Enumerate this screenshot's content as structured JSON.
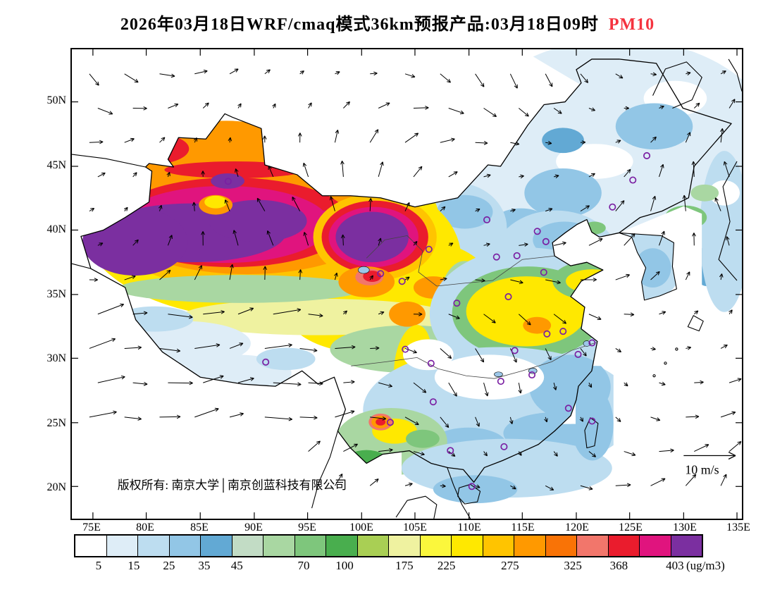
{
  "title": {
    "main": "2026年03月18日WRF/cmaq模式36km预报产品:03月18日09时",
    "pollutant": "PM10",
    "pollutant_color": "#f5333f"
  },
  "map": {
    "lat_labels": [
      "50N",
      "45N",
      "40N",
      "35N",
      "30N",
      "25N",
      "20N"
    ],
    "lon_labels": [
      "75E",
      "80E",
      "85E",
      "90E",
      "95E",
      "100E",
      "105E",
      "110E",
      "115E",
      "120E",
      "125E",
      "130E",
      "135E"
    ],
    "copyright": "版权所有: 南京大学│南京创蓝科技有限公司",
    "wind_scale_label": "10 m/s",
    "city_marker_color": "#7a1fa2",
    "city_markers": [
      [
        87.6,
        43.8
      ],
      [
        91.1,
        29.7
      ],
      [
        101.8,
        36.6
      ],
      [
        103.8,
        36.0
      ],
      [
        106.3,
        38.5
      ],
      [
        111.7,
        40.8
      ],
      [
        108.9,
        34.3
      ],
      [
        104.1,
        30.7
      ],
      [
        106.5,
        29.6
      ],
      [
        102.7,
        25.0
      ],
      [
        106.7,
        26.6
      ],
      [
        108.3,
        22.8
      ],
      [
        110.3,
        20.0
      ],
      [
        113.3,
        23.1
      ],
      [
        113.0,
        28.2
      ],
      [
        114.3,
        30.6
      ],
      [
        113.7,
        34.8
      ],
      [
        112.6,
        37.9
      ],
      [
        114.5,
        38.0
      ],
      [
        116.4,
        39.9
      ],
      [
        117.2,
        39.1
      ],
      [
        123.4,
        41.8
      ],
      [
        125.3,
        43.9
      ],
      [
        126.6,
        45.8
      ],
      [
        117.0,
        36.7
      ],
      [
        117.3,
        31.9
      ],
      [
        118.8,
        32.1
      ],
      [
        121.5,
        31.2
      ],
      [
        120.2,
        30.3
      ],
      [
        115.9,
        28.7
      ],
      [
        119.3,
        26.1
      ],
      [
        121.5,
        25.1
      ]
    ]
  },
  "colorbar": {
    "unit_label": "(ug/m3)",
    "tick_values": [
      "5",
      "15",
      "25",
      "35",
      "45",
      "70",
      "100",
      "175",
      "225",
      "275",
      "325",
      "368",
      "403"
    ],
    "colors": [
      "#ffffff",
      "#deedf7",
      "#bdddf0",
      "#92c6e6",
      "#62a9d4",
      "#c2dcc5",
      "#a9d7a2",
      "#7ec67c",
      "#49ae4e",
      "#a9cf54",
      "#eff2a0",
      "#fbf73c",
      "#ffe800",
      "#ffc400",
      "#ff9900",
      "#f97306",
      "#f2766b",
      "#ea1c2d",
      "#e0147e",
      "#7b2fa0"
    ]
  }
}
